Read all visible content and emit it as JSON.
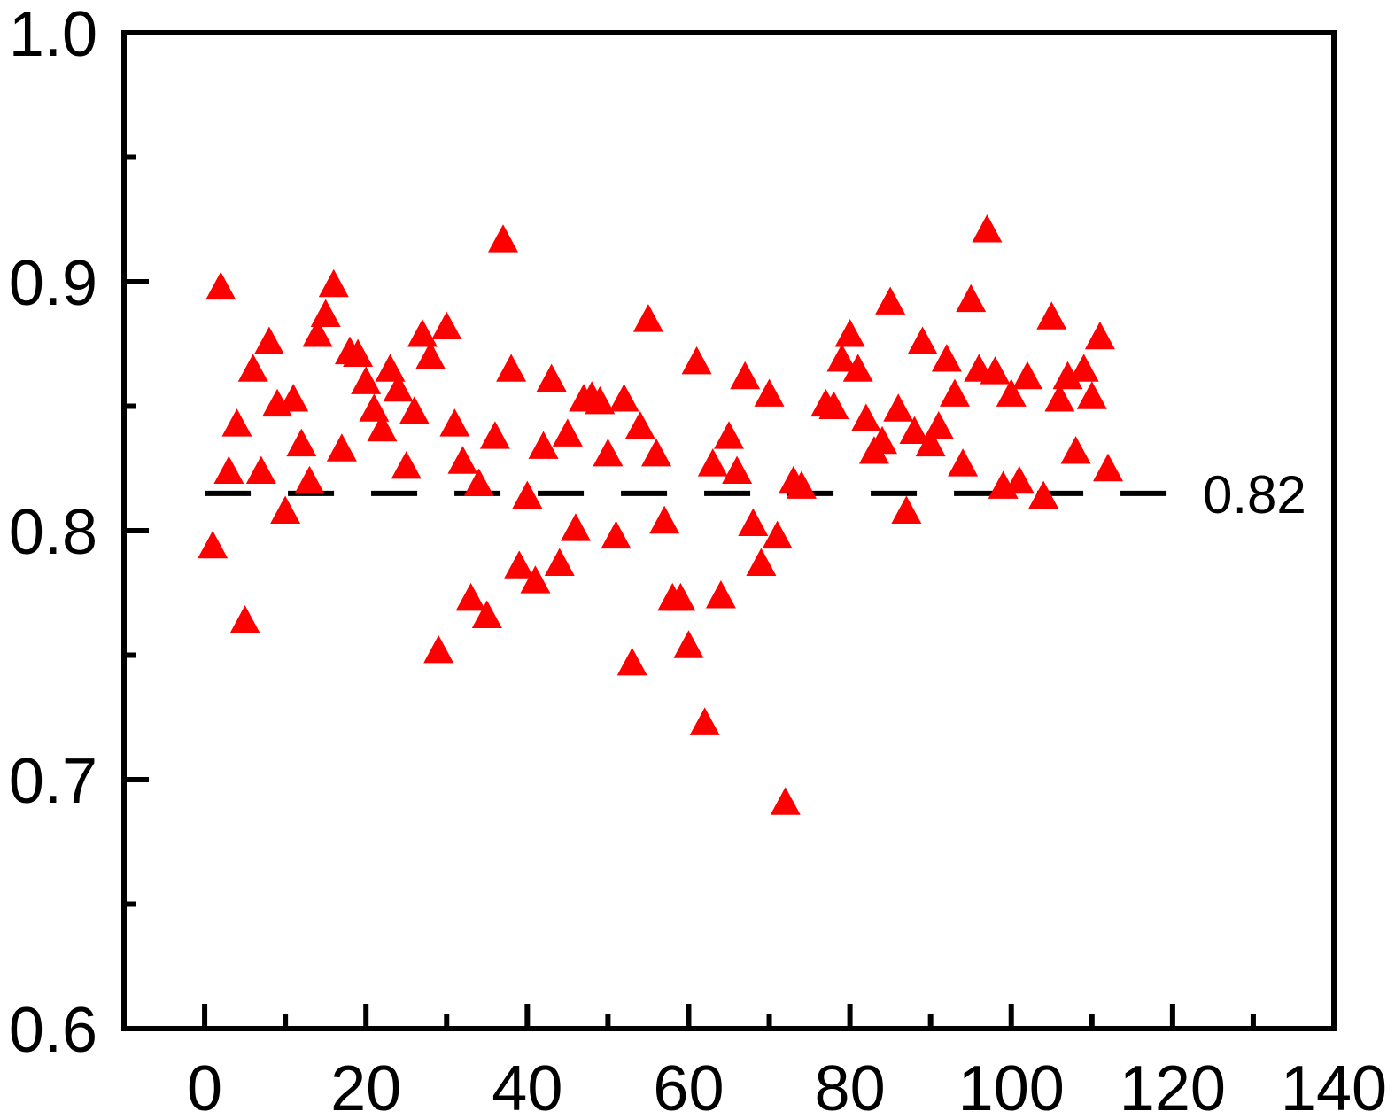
{
  "chart_data": {
    "type": "scatter",
    "title": "",
    "xlabel": "",
    "ylabel": "",
    "xlim": [
      -10,
      140
    ],
    "ylim": [
      0.6,
      1.0
    ],
    "x_ticks": [
      0,
      20,
      40,
      60,
      80,
      100,
      120,
      140
    ],
    "x_minor_ticks": [
      10,
      30,
      50,
      70,
      90,
      110,
      130
    ],
    "y_ticks": [
      0.6,
      0.7,
      0.8,
      0.9,
      1.0
    ],
    "y_minor_ticks": [
      0.65,
      0.75,
      0.85,
      0.95
    ],
    "x_tick_labels": [
      "0",
      "20",
      "40",
      "60",
      "80",
      "100",
      "120",
      "140"
    ],
    "y_tick_labels": [
      "0.6",
      "0.7",
      "0.8",
      "0.9",
      "1.0"
    ],
    "grid": false,
    "marker": "triangle",
    "marker_color": "#ff0000",
    "reference_line": {
      "y": 0.815,
      "style": "dashed",
      "color": "#000000",
      "label": "0.82"
    },
    "points": [
      [
        1,
        0.794
      ],
      [
        2,
        0.898
      ],
      [
        3,
        0.824
      ],
      [
        4,
        0.843
      ],
      [
        5,
        0.764
      ],
      [
        6,
        0.865
      ],
      [
        7,
        0.824
      ],
      [
        8,
        0.876
      ],
      [
        9,
        0.851
      ],
      [
        10,
        0.808
      ],
      [
        11,
        0.853
      ],
      [
        12,
        0.835
      ],
      [
        13,
        0.82
      ],
      [
        14,
        0.879
      ],
      [
        15,
        0.887
      ],
      [
        16,
        0.899
      ],
      [
        17,
        0.833
      ],
      [
        18,
        0.872
      ],
      [
        19,
        0.871
      ],
      [
        20,
        0.86
      ],
      [
        21,
        0.849
      ],
      [
        22,
        0.841
      ],
      [
        23,
        0.865
      ],
      [
        24,
        0.857
      ],
      [
        25,
        0.826
      ],
      [
        26,
        0.848
      ],
      [
        27,
        0.879
      ],
      [
        28,
        0.87
      ],
      [
        29,
        0.752
      ],
      [
        30,
        0.882
      ],
      [
        31,
        0.843
      ],
      [
        32,
        0.828
      ],
      [
        33,
        0.773
      ],
      [
        34,
        0.819
      ],
      [
        35,
        0.766
      ],
      [
        36,
        0.838
      ],
      [
        37,
        0.917
      ],
      [
        38,
        0.865
      ],
      [
        39,
        0.786
      ],
      [
        40,
        0.814
      ],
      [
        41,
        0.78
      ],
      [
        42,
        0.834
      ],
      [
        43,
        0.861
      ],
      [
        44,
        0.787
      ],
      [
        45,
        0.839
      ],
      [
        46,
        0.801
      ],
      [
        47,
        0.853
      ],
      [
        48,
        0.854
      ],
      [
        49,
        0.852
      ],
      [
        50,
        0.831
      ],
      [
        51,
        0.798
      ],
      [
        52,
        0.853
      ],
      [
        53,
        0.747
      ],
      [
        54,
        0.842
      ],
      [
        55,
        0.885
      ],
      [
        56,
        0.831
      ],
      [
        57,
        0.804
      ],
      [
        58,
        0.773
      ],
      [
        59,
        0.773
      ],
      [
        60,
        0.754
      ],
      [
        61,
        0.868
      ],
      [
        62,
        0.723
      ],
      [
        63,
        0.827
      ],
      [
        64,
        0.774
      ],
      [
        65,
        0.838
      ],
      [
        66,
        0.824
      ],
      [
        67,
        0.862
      ],
      [
        68,
        0.803
      ],
      [
        69,
        0.787
      ],
      [
        70,
        0.855
      ],
      [
        71,
        0.798
      ],
      [
        72,
        0.691
      ],
      [
        73,
        0.82
      ],
      [
        74,
        0.818
      ],
      [
        77,
        0.851
      ],
      [
        78,
        0.85
      ],
      [
        79,
        0.869
      ],
      [
        80,
        0.879
      ],
      [
        81,
        0.865
      ],
      [
        82,
        0.845
      ],
      [
        83,
        0.832
      ],
      [
        84,
        0.836
      ],
      [
        85,
        0.892
      ],
      [
        86,
        0.849
      ],
      [
        87,
        0.808
      ],
      [
        88,
        0.84
      ],
      [
        89,
        0.876
      ],
      [
        90,
        0.835
      ],
      [
        91,
        0.842
      ],
      [
        92,
        0.869
      ],
      [
        93,
        0.855
      ],
      [
        94,
        0.827
      ],
      [
        95,
        0.893
      ],
      [
        96,
        0.865
      ],
      [
        97,
        0.921
      ],
      [
        98,
        0.864
      ],
      [
        99,
        0.818
      ],
      [
        100,
        0.855
      ],
      [
        101,
        0.82
      ],
      [
        102,
        0.862
      ],
      [
        104,
        0.814
      ],
      [
        105,
        0.886
      ],
      [
        106,
        0.853
      ],
      [
        107,
        0.862
      ],
      [
        108,
        0.832
      ],
      [
        109,
        0.865
      ],
      [
        110,
        0.854
      ],
      [
        111,
        0.878
      ],
      [
        112,
        0.825
      ]
    ]
  }
}
